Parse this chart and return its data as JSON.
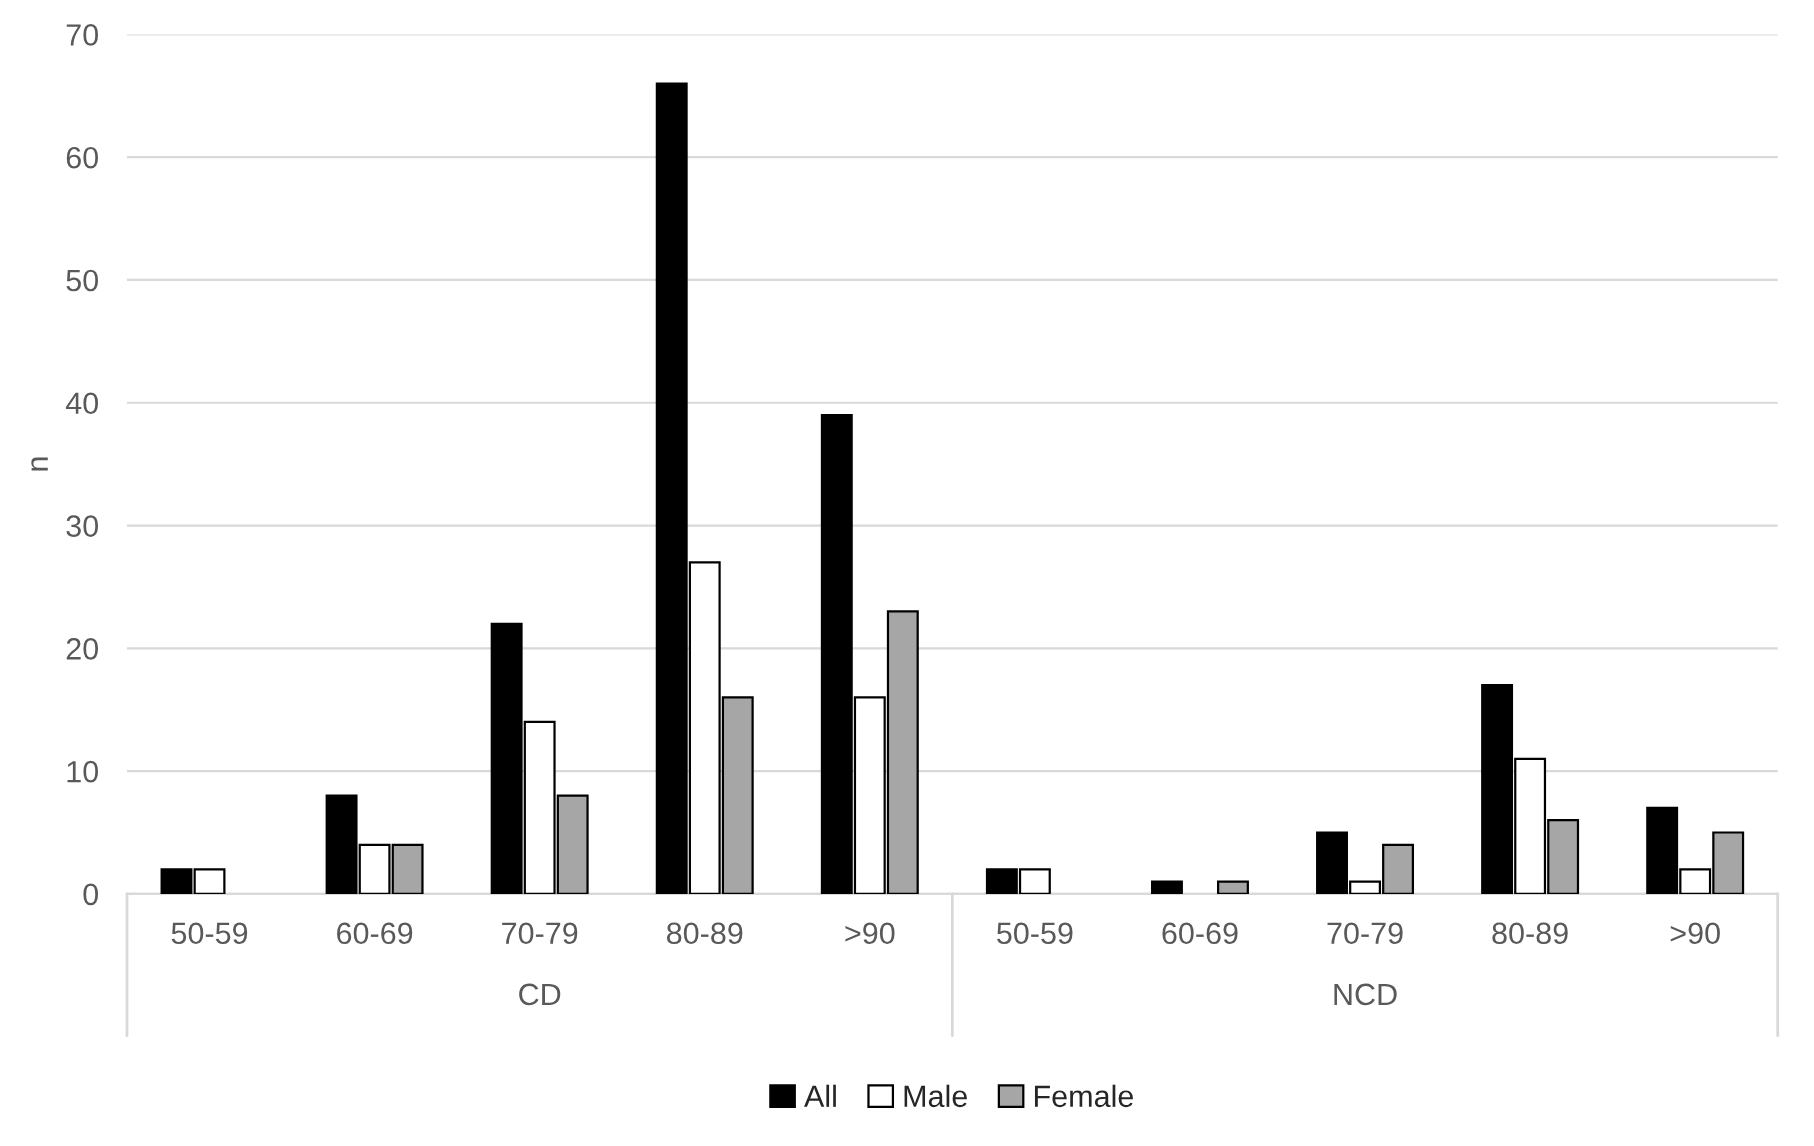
{
  "chart_data": {
    "type": "bar",
    "ylabel": "n",
    "categories": [
      "50-59",
      "60-69",
      "70-79",
      "80-89",
      ">90",
      "50-59",
      "60-69",
      "70-79",
      "80-89",
      ">90"
    ],
    "series": [
      {
        "name": "All",
        "color": "#000000",
        "values": [
          2,
          8,
          22,
          66,
          39,
          2,
          1,
          5,
          17,
          7
        ]
      },
      {
        "name": "Male",
        "color": "#ffffff",
        "values": [
          2,
          4,
          14,
          27,
          16,
          2,
          0,
          1,
          11,
          2
        ]
      },
      {
        "name": "Female",
        "color": "#a6a6a6",
        "values": [
          0,
          4,
          8,
          16,
          23,
          0,
          1,
          4,
          6,
          5
        ]
      }
    ],
    "annotations": [
      "CD",
      "NCD"
    ],
    "ylim": [
      0,
      70
    ],
    "yticks": [
      0,
      10,
      20,
      30,
      40,
      50,
      60,
      70
    ],
    "grid": "y",
    "legend": "bottom"
  }
}
